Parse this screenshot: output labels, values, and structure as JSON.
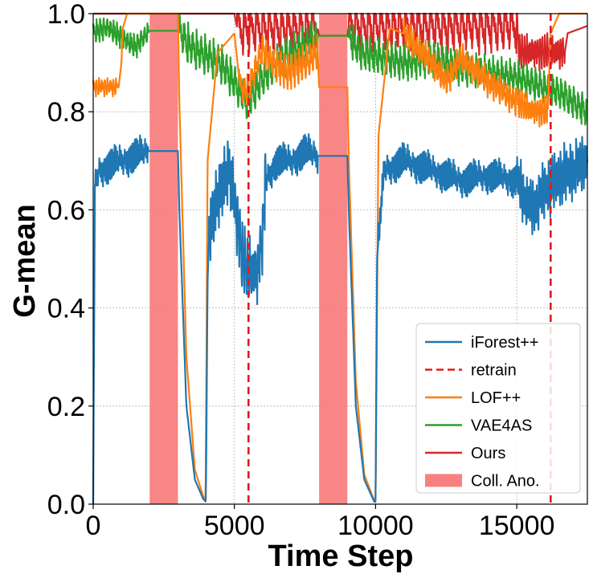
{
  "chart_data": {
    "type": "line",
    "title": "",
    "xlabel": "Time Step",
    "ylabel": "G-mean",
    "xlim": [
      0,
      17500
    ],
    "ylim": [
      0.0,
      1.0
    ],
    "xticks": [
      0,
      5000,
      10000,
      15000
    ],
    "xtick_labels": [
      "0",
      "5000",
      "10000",
      "15000"
    ],
    "yticks": [
      0.0,
      0.2,
      0.4,
      0.6,
      0.8,
      1.0
    ],
    "ytick_labels": [
      "0.0",
      "0.2",
      "0.4",
      "0.6",
      "0.8",
      "1.0"
    ],
    "grid": true,
    "legend_position": "bottom-right",
    "legend": [
      {
        "label": "iForest++",
        "color": "#1f77b4",
        "style": "solid"
      },
      {
        "label": "retrain",
        "color": "#e31a1c",
        "style": "dashed"
      },
      {
        "label": "LOF++",
        "color": "#ff7f0e",
        "style": "solid"
      },
      {
        "label": "VAE4AS",
        "color": "#2ca02c",
        "style": "solid"
      },
      {
        "label": "Ours",
        "color": "#d62728",
        "style": "solid"
      },
      {
        "label": "Coll. Ano.",
        "color": "#f88080",
        "style": "patch"
      }
    ],
    "spans": [
      {
        "label": "Coll. Ano.",
        "x0": 2000,
        "x1": 3000
      },
      {
        "label": "Coll. Ano.",
        "x0": 8000,
        "x1": 9000
      }
    ],
    "vlines": [
      {
        "label": "retrain",
        "x": 5500
      },
      {
        "label": "retrain",
        "x": 16200
      }
    ],
    "series": [
      {
        "name": "Ours",
        "color": "#d62728",
        "oscillation": [
          {
            "x0": 5100,
            "x1": 7950,
            "amp": 0.045,
            "period": 220
          },
          {
            "x0": 9050,
            "x1": 15000,
            "amp": 0.045,
            "period": 220
          },
          {
            "x0": 15000,
            "x1": 16700,
            "amp": 0.03,
            "period": 90
          }
        ],
        "x": [
          0,
          5000,
          5100,
          7950,
          8000,
          9000,
          9050,
          15000,
          15100,
          16700,
          16800,
          17500
        ],
        "y": [
          1.0,
          1.0,
          0.97,
          0.97,
          0.955,
          0.955,
          0.975,
          0.975,
          0.92,
          0.92,
          0.96,
          0.975
        ]
      },
      {
        "name": "VAE4AS",
        "color": "#2ca02c",
        "oscillation": [
          {
            "x0": 0,
            "x1": 1950,
            "amp": 0.02,
            "period": 120
          },
          {
            "x0": 3050,
            "x1": 7950,
            "amp": 0.035,
            "period": 150
          },
          {
            "x0": 9050,
            "x1": 17500,
            "amp": 0.03,
            "period": 150
          }
        ],
        "x": [
          0,
          500,
          1000,
          1500,
          2000,
          3000,
          3500,
          4500,
          5000,
          5500,
          6000,
          6500,
          7000,
          7900,
          8000,
          9000,
          9500,
          11000,
          12000,
          13000,
          14000,
          15000,
          15500,
          16500,
          17500
        ],
        "y": [
          0.96,
          0.97,
          0.95,
          0.93,
          0.965,
          0.965,
          0.93,
          0.9,
          0.86,
          0.82,
          0.87,
          0.9,
          0.92,
          0.95,
          0.955,
          0.955,
          0.92,
          0.9,
          0.91,
          0.89,
          0.88,
          0.87,
          0.86,
          0.84,
          0.8
        ]
      },
      {
        "name": "LOF++",
        "color": "#ff7f0e",
        "oscillation": [
          {
            "x0": 0,
            "x1": 850,
            "amp": 0.015,
            "period": 100
          },
          {
            "x0": 5200,
            "x1": 7950,
            "amp": 0.03,
            "period": 130
          },
          {
            "x0": 11000,
            "x1": 15000,
            "amp": 0.025,
            "period": 110
          },
          {
            "x0": 15000,
            "x1": 16100,
            "amp": 0.025,
            "period": 90
          }
        ],
        "x": [
          0,
          900,
          1000,
          1050,
          1200,
          2000,
          3000,
          3050,
          3300,
          3600,
          3900,
          3950,
          3980,
          4050,
          4400,
          5000,
          5200,
          5500,
          5700,
          6000,
          6300,
          7000,
          7950,
          8000,
          9000,
          9050,
          9300,
          9600,
          9900,
          9950,
          10000,
          10100,
          10500,
          11000,
          11500,
          12000,
          12500,
          13000,
          14000,
          15000,
          15500,
          16100,
          16200,
          16500,
          17500
        ],
        "y": [
          0.85,
          0.85,
          0.9,
          0.97,
          1.0,
          1.0,
          1.0,
          0.82,
          0.3,
          0.07,
          0.015,
          0.01,
          0.01,
          0.7,
          0.92,
          0.96,
          0.85,
          0.84,
          0.88,
          0.93,
          0.9,
          0.88,
          0.92,
          0.85,
          0.85,
          0.7,
          0.25,
          0.06,
          0.015,
          0.01,
          0.01,
          0.75,
          0.97,
          0.96,
          0.93,
          0.9,
          0.86,
          0.91,
          0.86,
          0.82,
          0.8,
          0.8,
          0.96,
          1.0,
          1.0
        ]
      },
      {
        "name": "iForest++",
        "color": "#1f77b4",
        "oscillation": [
          {
            "x0": 80,
            "x1": 1950,
            "amp": 0.03,
            "period": 45
          },
          {
            "x0": 4100,
            "x1": 5000,
            "amp": 0.06,
            "period": 60
          },
          {
            "x0": 5000,
            "x1": 6100,
            "amp": 0.06,
            "period": 90
          },
          {
            "x0": 6100,
            "x1": 7950,
            "amp": 0.03,
            "period": 45
          },
          {
            "x0": 10100,
            "x1": 15000,
            "amp": 0.03,
            "period": 45
          },
          {
            "x0": 15000,
            "x1": 17500,
            "amp": 0.05,
            "period": 70
          }
        ],
        "x": [
          0,
          60,
          200,
          1000,
          2000,
          3000,
          3050,
          3300,
          3600,
          3900,
          3990,
          4050,
          4100,
          4400,
          4800,
          5000,
          5300,
          5500,
          5800,
          6000,
          6100,
          6500,
          7000,
          7500,
          7950,
          8000,
          9000,
          9050,
          9300,
          9600,
          9950,
          10000,
          10050,
          10300,
          11000,
          12000,
          13000,
          14000,
          15000,
          15300,
          15600,
          16000,
          16400,
          17000,
          17500
        ],
        "y": [
          0.0,
          0.65,
          0.68,
          0.7,
          0.72,
          0.72,
          0.6,
          0.2,
          0.05,
          0.01,
          0.005,
          0.45,
          0.55,
          0.62,
          0.68,
          0.62,
          0.5,
          0.48,
          0.47,
          0.55,
          0.66,
          0.7,
          0.7,
          0.72,
          0.71,
          0.71,
          0.71,
          0.6,
          0.2,
          0.05,
          0.005,
          0.005,
          0.5,
          0.68,
          0.7,
          0.68,
          0.66,
          0.67,
          0.66,
          0.62,
          0.6,
          0.64,
          0.66,
          0.68,
          0.7
        ]
      }
    ]
  }
}
